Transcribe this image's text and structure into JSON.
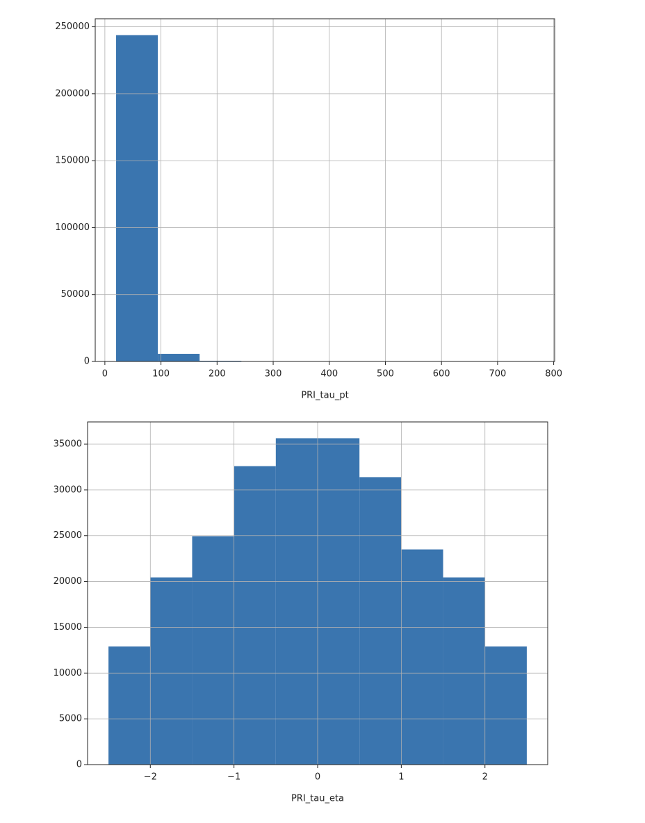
{
  "chart_data": [
    {
      "type": "histogram",
      "xlabel": "PRI_tau_pt",
      "color": "#3a75af",
      "grid": true,
      "bins": [
        20,
        94.44,
        168.89,
        243.33,
        317.78,
        392.22,
        466.67,
        541.11,
        615.56,
        690,
        764.44
      ],
      "values": [
        243800,
        5700,
        500,
        100,
        30,
        10,
        5,
        2,
        1,
        1
      ],
      "xlim": [
        -17.2,
        801.7
      ],
      "xticks": [
        0,
        100,
        200,
        300,
        400,
        500,
        600,
        700,
        800
      ],
      "ylim": [
        0,
        256000
      ],
      "yticks": [
        0,
        50000,
        100000,
        150000,
        200000,
        250000
      ]
    },
    {
      "type": "histogram",
      "xlabel": "PRI_tau_eta",
      "color": "#3a75af",
      "grid": true,
      "bins": [
        -2.5,
        -2,
        -1.5,
        -1,
        -0.5,
        0,
        0.5,
        1,
        1.5,
        2,
        2.5
      ],
      "values": [
        12900,
        20450,
        24950,
        32600,
        35650,
        35650,
        31400,
        23500,
        20450,
        12900
      ],
      "xlim": [
        -2.75,
        2.75
      ],
      "xticks": [
        {
          "value": -2,
          "label": "−2"
        },
        {
          "value": -1,
          "label": "−1"
        },
        0,
        1,
        2
      ],
      "ylim": [
        0,
        37430
      ],
      "yticks": [
        0,
        5000,
        10000,
        15000,
        20000,
        25000,
        30000,
        35000
      ]
    }
  ]
}
